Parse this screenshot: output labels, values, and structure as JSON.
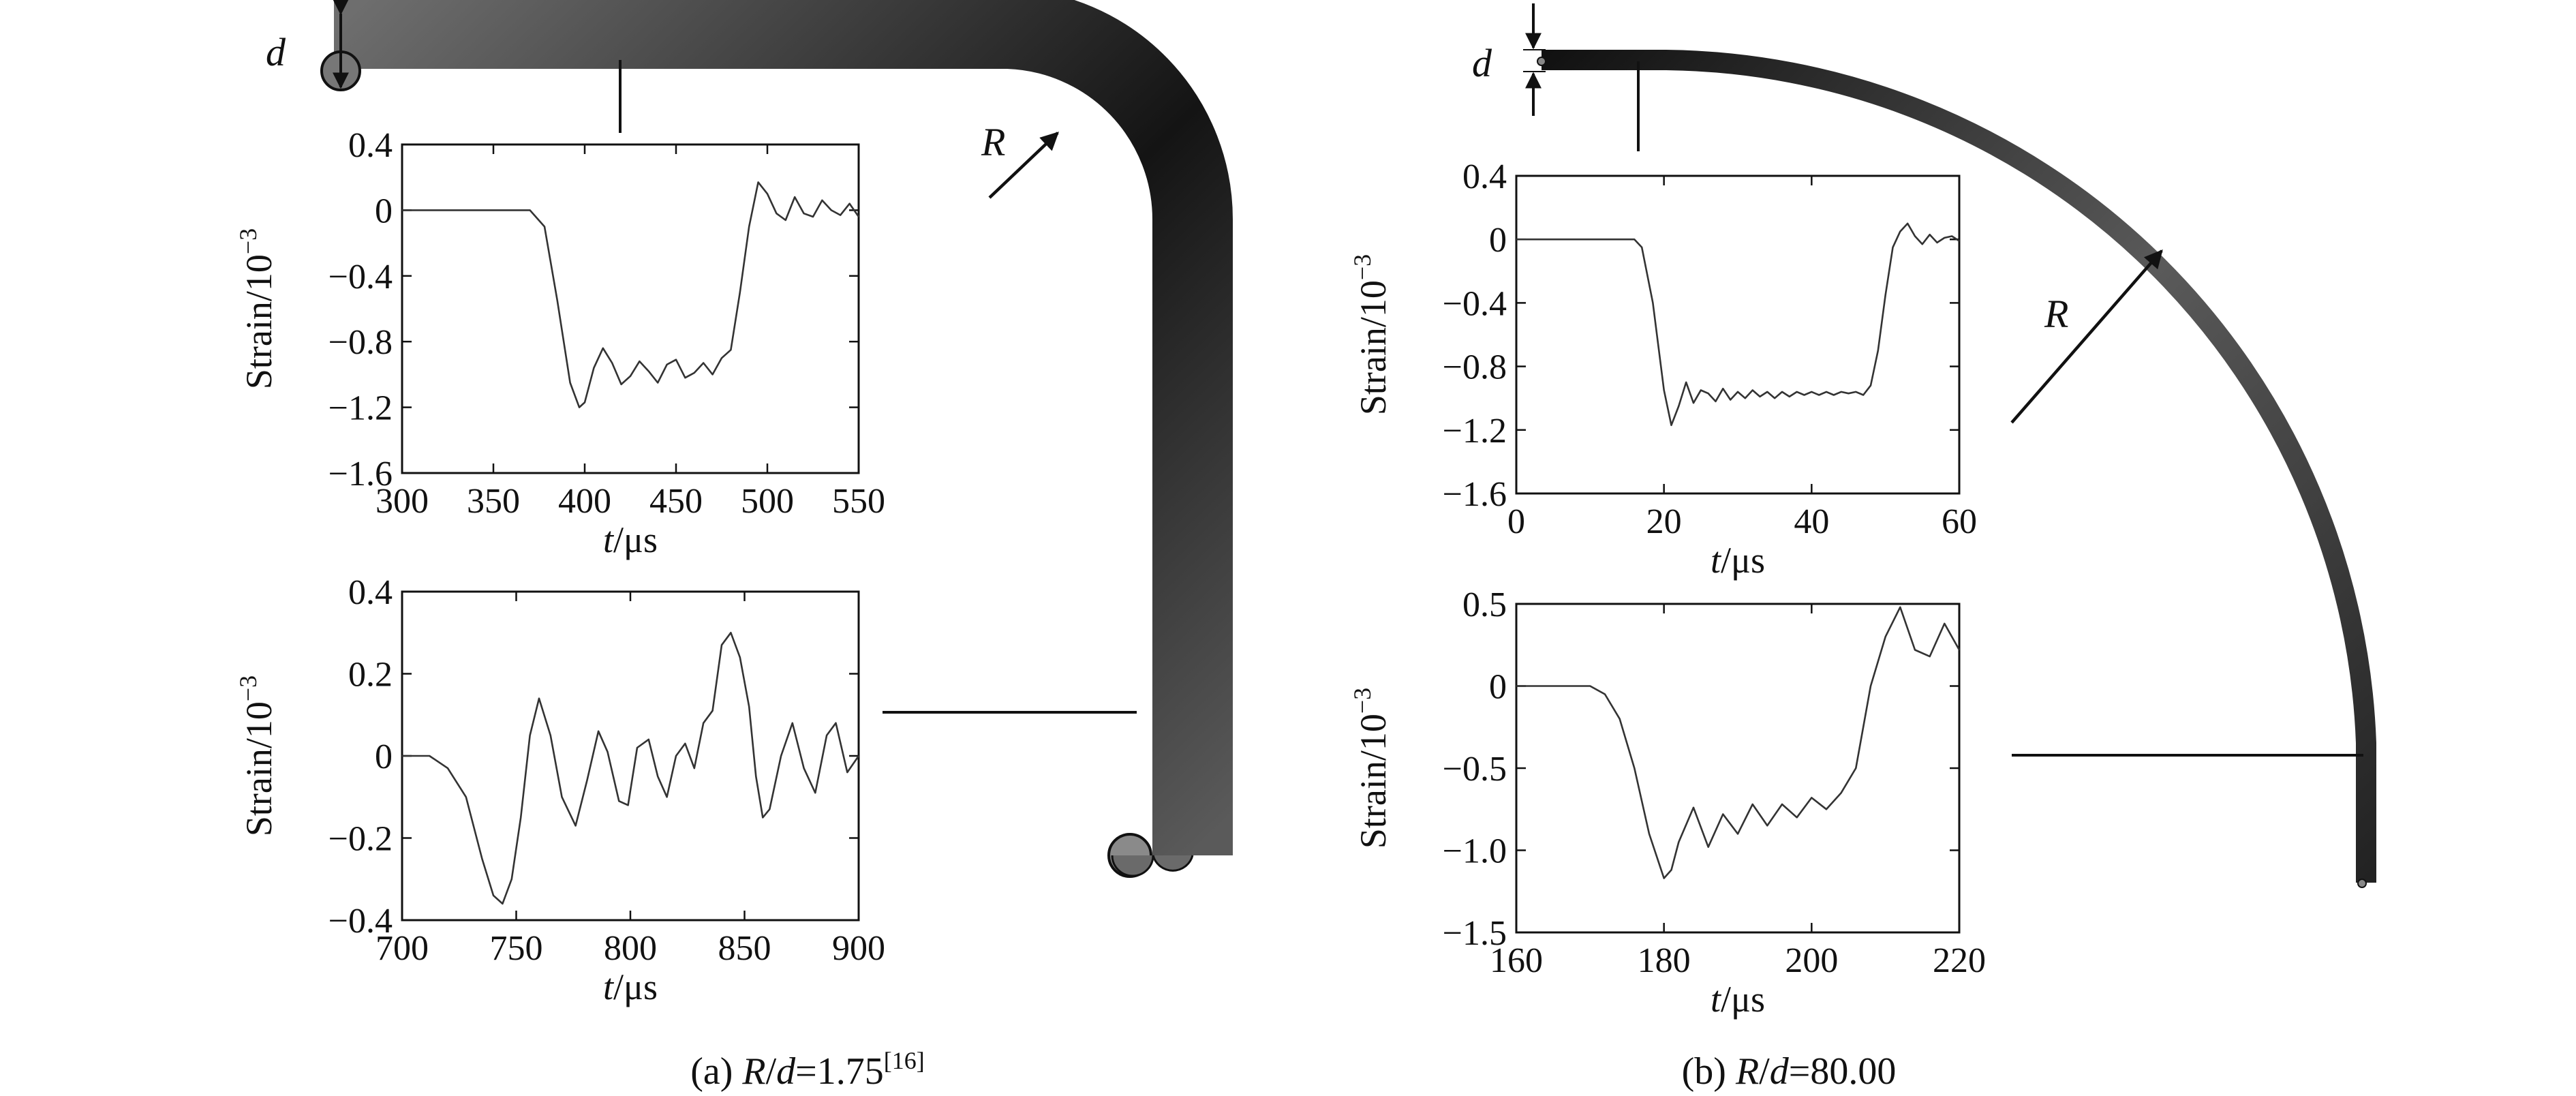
{
  "annotations": {
    "d_symbol": "d",
    "R_symbol": "R"
  },
  "captions": {
    "a": {
      "prefix": "(a) ",
      "R": "R",
      "slash": "/",
      "d": "d",
      "eq": "=1.75",
      "ref": "[16]"
    },
    "b": {
      "prefix": "(b) ",
      "R": "R",
      "slash": "/",
      "d": "d",
      "eq": "=80.00"
    }
  },
  "colors": {
    "pipe_dark": "#111111",
    "pipe_light": "#777777",
    "trace": "#333333"
  },
  "chart_data": [
    {
      "id": "a_top",
      "type": "line",
      "xlabel": {
        "italic": "t",
        "rest": "/μs"
      },
      "ylabel": {
        "text": "Strain/10",
        "sup": "−3"
      },
      "xlim": [
        300,
        550
      ],
      "ylim": [
        -1.6,
        0.4
      ],
      "xticks": [
        "300",
        "350",
        "400",
        "450",
        "500",
        "550"
      ],
      "yticks": [
        "0.4",
        "0",
        "−0.4",
        "−0.8",
        "−1.2",
        "−1.6"
      ],
      "x": [
        300,
        370,
        378,
        385,
        392,
        397,
        400,
        405,
        410,
        415,
        420,
        425,
        430,
        435,
        440,
        445,
        450,
        455,
        460,
        465,
        470,
        475,
        480,
        485,
        490,
        495,
        500,
        505,
        510,
        515,
        520,
        525,
        530,
        535,
        540,
        545,
        550
      ],
      "values": [
        0,
        0,
        -0.1,
        -0.55,
        -1.05,
        -1.2,
        -1.17,
        -0.96,
        -0.84,
        -0.93,
        -1.06,
        -1.01,
        -0.92,
        -0.98,
        -1.05,
        -0.94,
        -0.91,
        -1.02,
        -0.99,
        -0.93,
        -1.0,
        -0.9,
        -0.85,
        -0.5,
        -0.1,
        0.17,
        0.1,
        -0.02,
        -0.06,
        0.08,
        -0.02,
        -0.04,
        0.06,
        0.0,
        -0.03,
        0.04,
        -0.04
      ]
    },
    {
      "id": "a_bottom",
      "type": "line",
      "xlabel": {
        "italic": "t",
        "rest": "/μs"
      },
      "ylabel": {
        "text": "Strain/10",
        "sup": "−3"
      },
      "xlim": [
        700,
        900
      ],
      "ylim": [
        -0.4,
        0.4
      ],
      "xticks": [
        "700",
        "750",
        "800",
        "850",
        "900"
      ],
      "yticks": [
        "0.4",
        "0.2",
        "0",
        "−0.2",
        "−0.4"
      ],
      "x": [
        700,
        712,
        720,
        728,
        735,
        740,
        744,
        748,
        752,
        756,
        760,
        765,
        770,
        776,
        781,
        786,
        790,
        795,
        799,
        803,
        808,
        812,
        816,
        820,
        824,
        828,
        832,
        836,
        840,
        844,
        848,
        852,
        855,
        858,
        861,
        866,
        871,
        876,
        881,
        886,
        890,
        895,
        900
      ],
      "values": [
        0,
        0,
        -0.03,
        -0.1,
        -0.25,
        -0.34,
        -0.36,
        -0.3,
        -0.15,
        0.05,
        0.14,
        0.05,
        -0.1,
        -0.17,
        -0.06,
        0.06,
        0.01,
        -0.11,
        -0.12,
        0.02,
        0.04,
        -0.05,
        -0.1,
        0.0,
        0.03,
        -0.03,
        0.08,
        0.11,
        0.27,
        0.3,
        0.24,
        0.12,
        -0.05,
        -0.15,
        -0.13,
        0.0,
        0.08,
        -0.03,
        -0.09,
        0.05,
        0.08,
        -0.04,
        0.0
      ]
    },
    {
      "id": "b_top",
      "type": "line",
      "xlabel": {
        "italic": "t",
        "rest": "/μs"
      },
      "ylabel": {
        "text": "Strain/10",
        "sup": "−3"
      },
      "xlim": [
        0,
        60
      ],
      "ylim": [
        -1.6,
        0.4
      ],
      "xticks": [
        "0",
        "20",
        "40",
        "60"
      ],
      "yticks": [
        "0.4",
        "0",
        "−0.4",
        "−0.8",
        "−1.2",
        "−1.6"
      ],
      "x": [
        0,
        16,
        17,
        18.5,
        20,
        21,
        22,
        23,
        24,
        25,
        26,
        27,
        28,
        29,
        30,
        31,
        32,
        33,
        34,
        35,
        36,
        37,
        38,
        39,
        40,
        41,
        42,
        43,
        44,
        45,
        46,
        47,
        48,
        49,
        50,
        51,
        52,
        53,
        54,
        55,
        56,
        57,
        58,
        59,
        60
      ],
      "values": [
        0,
        0,
        -0.05,
        -0.4,
        -0.95,
        -1.17,
        -1.05,
        -0.9,
        -1.03,
        -0.95,
        -0.97,
        -1.02,
        -0.94,
        -1.01,
        -0.96,
        -1.0,
        -0.95,
        -0.99,
        -0.96,
        -1.0,
        -0.96,
        -0.99,
        -0.96,
        -0.98,
        -0.96,
        -0.98,
        -0.96,
        -0.98,
        -0.96,
        -0.97,
        -0.96,
        -0.98,
        -0.92,
        -0.7,
        -0.35,
        -0.05,
        0.05,
        0.1,
        0.02,
        -0.03,
        0.03,
        -0.02,
        0.01,
        0.02,
        -0.01
      ]
    },
    {
      "id": "b_bottom",
      "type": "line",
      "xlabel": {
        "italic": "t",
        "rest": "/μs"
      },
      "ylabel": {
        "text": "Strain/10",
        "sup": "−3"
      },
      "xlim": [
        160,
        220
      ],
      "ylim": [
        -1.5,
        0.5
      ],
      "xticks": [
        "160",
        "180",
        "200",
        "220"
      ],
      "yticks": [
        "0.5",
        "0",
        "−0.5",
        "−1.0",
        "−1.5"
      ],
      "x": [
        160,
        170,
        172,
        174,
        176,
        178,
        180,
        181,
        182,
        184,
        186,
        188,
        190,
        192,
        194,
        196,
        198,
        200,
        202,
        204,
        206,
        208,
        210,
        212,
        214,
        216,
        218,
        220
      ],
      "values": [
        0,
        0,
        -0.05,
        -0.2,
        -0.5,
        -0.9,
        -1.17,
        -1.12,
        -0.95,
        -0.74,
        -0.98,
        -0.78,
        -0.9,
        -0.72,
        -0.85,
        -0.72,
        -0.8,
        -0.68,
        -0.75,
        -0.65,
        -0.5,
        0.0,
        0.3,
        0.48,
        0.22,
        0.18,
        0.38,
        0.22
      ]
    }
  ]
}
